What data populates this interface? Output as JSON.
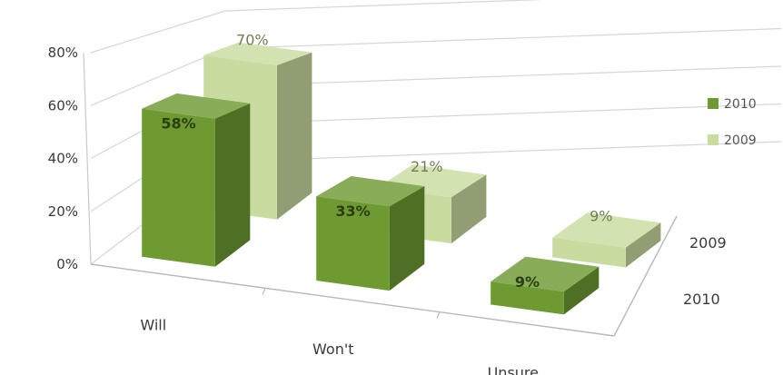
{
  "chart_data": {
    "type": "bar",
    "subtype": "3d-clustered-depth",
    "categories": [
      "Will",
      "Won't",
      "Unsure"
    ],
    "series": [
      {
        "name": "2010",
        "values": [
          58,
          33,
          9
        ],
        "labels": [
          "58%",
          "33%",
          "9%"
        ],
        "color": "#6e9a32"
      },
      {
        "name": "2009",
        "values": [
          70,
          21,
          9
        ],
        "labels": [
          "70%",
          "21%",
          "9%"
        ],
        "color": "#c9dca0"
      }
    ],
    "depth_labels": [
      "2009",
      "2010"
    ],
    "y_ticks": [
      "0%",
      "20%",
      "40%",
      "60%",
      "80%"
    ],
    "ylim": [
      0,
      80
    ],
    "grid": true,
    "legend_position": "right",
    "legend": [
      {
        "name": "2010",
        "color": "#6e9a32"
      },
      {
        "name": "2009",
        "color": "#c9dca0"
      }
    ]
  }
}
